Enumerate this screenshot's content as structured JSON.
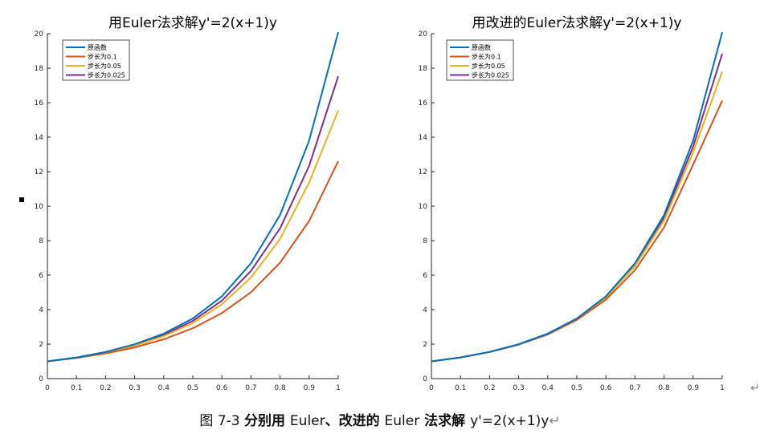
{
  "colors": {
    "exact": "#0072BD",
    "h01": "#D95319",
    "h005": "#EDB120",
    "h0025": "#7E2F8E",
    "axis": "#262626"
  },
  "caption": {
    "prefix": "图 7-3 ",
    "bold": "分别用 ",
    "method1": "Euler",
    "sep": "、",
    "bold2": "改进的 ",
    "method2": "Euler",
    "bold3": " 法求解 ",
    "equation": "y'=2(x+1)y",
    "mark": "↵"
  },
  "side_mark": "↵",
  "chart_data": [
    {
      "type": "line",
      "title": "用Euler法求解y'=2(x+1)y",
      "xlabel": "",
      "ylabel": "",
      "xlim": [
        0,
        1
      ],
      "ylim": [
        0,
        20
      ],
      "xticks": [
        "0",
        "0.1",
        "0.2",
        "0.3",
        "0.4",
        "0.5",
        "0.6",
        "0.7",
        "0.8",
        "0.9",
        "1"
      ],
      "yticks": [
        "0",
        "2",
        "4",
        "6",
        "8",
        "10",
        "12",
        "14",
        "16",
        "18",
        "20"
      ],
      "legend": "top-left",
      "grid": false,
      "series": [
        {
          "name": "原函数",
          "color": "#0072BD",
          "x": [
            0,
            0.1,
            0.2,
            0.3,
            0.4,
            0.5,
            0.6,
            0.7,
            0.8,
            0.9,
            1
          ],
          "y": [
            1,
            1.23,
            1.55,
            1.99,
            2.61,
            3.49,
            4.77,
            6.69,
            9.49,
            13.8,
            20.09
          ]
        },
        {
          "name": "步长为0.1",
          "color": "#D95319",
          "x": [
            0,
            0.1,
            0.2,
            0.3,
            0.4,
            0.5,
            0.6,
            0.7,
            0.8,
            0.9,
            1
          ],
          "y": [
            1,
            1.2,
            1.46,
            1.81,
            2.28,
            2.92,
            3.8,
            5.01,
            6.72,
            9.14,
            12.61
          ]
        },
        {
          "name": "步长为0.05",
          "color": "#EDB120",
          "x": [
            0,
            0.1,
            0.2,
            0.3,
            0.4,
            0.5,
            0.6,
            0.7,
            0.8,
            0.9,
            1
          ],
          "y": [
            1,
            1.22,
            1.51,
            1.91,
            2.46,
            3.23,
            4.31,
            5.86,
            8.1,
            11.37,
            15.55
          ]
        },
        {
          "name": "步长为0.025",
          "color": "#7E2F8E",
          "x": [
            0,
            0.1,
            0.2,
            0.3,
            0.4,
            0.5,
            0.6,
            0.7,
            0.8,
            0.9,
            1
          ],
          "y": [
            1,
            1.22,
            1.53,
            1.95,
            2.53,
            3.35,
            4.52,
            6.24,
            8.71,
            12.34,
            17.53
          ]
        }
      ]
    },
    {
      "type": "line",
      "title": "用改进的Euler法求解y'=2(x+1)y",
      "xlabel": "",
      "ylabel": "",
      "xlim": [
        0,
        1
      ],
      "ylim": [
        0,
        20
      ],
      "xticks": [
        "0",
        "0.1",
        "0.2",
        "0.3",
        "0.4",
        "0.5",
        "0.6",
        "0.7",
        "0.8",
        "0.9",
        "1"
      ],
      "yticks": [
        "0",
        "2",
        "4",
        "6",
        "8",
        "10",
        "12",
        "14",
        "16",
        "18",
        "20"
      ],
      "legend": "top-left",
      "grid": false,
      "series": [
        {
          "name": "原函数",
          "color": "#0072BD",
          "x": [
            0,
            0.1,
            0.2,
            0.3,
            0.4,
            0.5,
            0.6,
            0.7,
            0.8,
            0.9,
            1
          ],
          "y": [
            1,
            1.23,
            1.55,
            1.99,
            2.61,
            3.49,
            4.77,
            6.69,
            9.49,
            13.8,
            20.09
          ]
        },
        {
          "name": "步长为0.1",
          "color": "#D95319",
          "x": [
            0,
            0.1,
            0.2,
            0.3,
            0.4,
            0.5,
            0.6,
            0.7,
            0.8,
            0.9,
            1
          ],
          "y": [
            1,
            1.23,
            1.54,
            1.97,
            2.56,
            3.4,
            4.58,
            6.29,
            8.77,
            12.41,
            16.12
          ]
        },
        {
          "name": "步长为0.05",
          "color": "#EDB120",
          "x": [
            0,
            0.1,
            0.2,
            0.3,
            0.4,
            0.5,
            0.6,
            0.7,
            0.8,
            0.9,
            1
          ],
          "y": [
            1,
            1.23,
            1.55,
            1.98,
            2.59,
            3.46,
            4.7,
            6.52,
            9.17,
            13.12,
            17.8
          ]
        },
        {
          "name": "步长为0.025",
          "color": "#7E2F8E",
          "x": [
            0,
            0.1,
            0.2,
            0.3,
            0.4,
            0.5,
            0.6,
            0.7,
            0.8,
            0.9,
            1
          ],
          "y": [
            1,
            1.23,
            1.55,
            1.99,
            2.6,
            3.48,
            4.74,
            6.61,
            9.33,
            13.45,
            18.84
          ]
        }
      ]
    }
  ]
}
